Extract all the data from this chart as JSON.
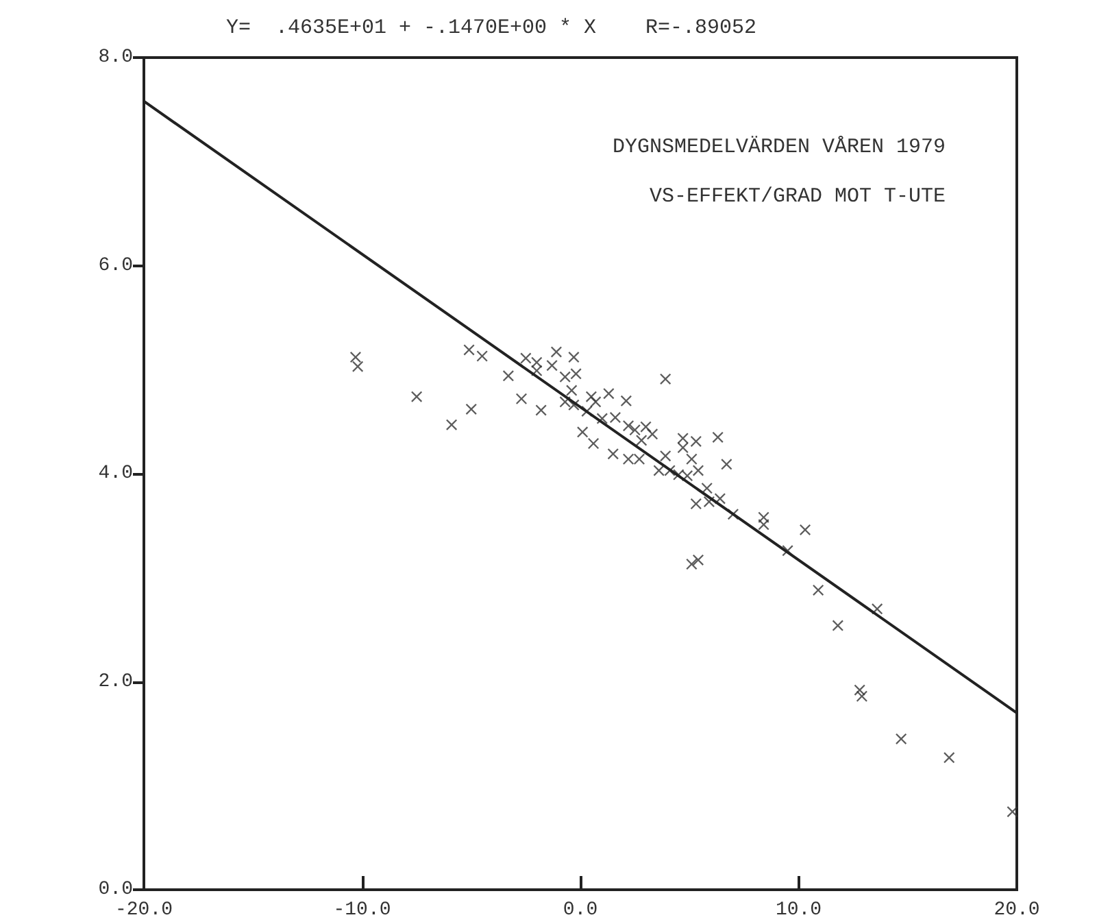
{
  "chart_data": {
    "type": "scatter",
    "title": "Y=  .4635E+01 + -.1470E+00 * X    R=-.89052",
    "annotations": [
      "DYGNSMEDELVÄRDEN VÅREN 1979",
      "VS-EFFEKT/GRAD MOT T-UTE"
    ],
    "xlim": [
      -20,
      20
    ],
    "ylim": [
      0,
      8
    ],
    "xticks": [
      {
        "value": -20,
        "label": "-20.0"
      },
      {
        "value": -10,
        "label": "-10.0"
      },
      {
        "value": 0,
        "label": "0.0"
      },
      {
        "value": 10,
        "label": "10.0"
      },
      {
        "value": 20,
        "label": "20.0"
      }
    ],
    "yticks": [
      {
        "value": 0,
        "label": "0.0"
      },
      {
        "value": 2,
        "label": "2.0"
      },
      {
        "value": 4,
        "label": "4.0"
      },
      {
        "value": 6,
        "label": "6.0"
      },
      {
        "value": 8,
        "label": "8.0"
      }
    ],
    "grid": false,
    "series": [
      {
        "color": "#333333",
        "marker": "cross",
        "x": [
          -10.3,
          -10.2,
          -7.5,
          -5.9,
          -5.0,
          -5.1,
          -4.5,
          -3.3,
          -2.7,
          -2.5,
          -2.0,
          -2.0,
          -1.8,
          -1.1,
          -1.3,
          -0.3,
          -0.2,
          -0.7,
          -0.4,
          -0.7,
          -0.3,
          0.5,
          1.3,
          0.7,
          0.3,
          1.0,
          1.6,
          2.1,
          0.1,
          0.6,
          2.2,
          2.5,
          3.0,
          3.3,
          2.8,
          1.5,
          2.2,
          2.7,
          3.9,
          4.7,
          4.7,
          5.3,
          6.3,
          5.1,
          3.9,
          3.6,
          4.1,
          4.5,
          4.9,
          5.4,
          6.7,
          5.8,
          5.3,
          5.9,
          6.4,
          7.0,
          8.4,
          8.4,
          5.1,
          5.4,
          9.5,
          10.3,
          10.9,
          11.8,
          13.6,
          12.8,
          12.9,
          14.7,
          16.9,
          19.8
        ],
        "values": [
          5.12,
          5.03,
          4.74,
          4.47,
          4.62,
          5.19,
          5.13,
          4.94,
          4.72,
          5.11,
          5.07,
          4.99,
          4.61,
          5.17,
          5.04,
          5.12,
          4.96,
          4.93,
          4.8,
          4.69,
          4.66,
          4.74,
          4.77,
          4.69,
          4.6,
          4.53,
          4.54,
          4.7,
          4.4,
          4.29,
          4.46,
          4.42,
          4.45,
          4.38,
          4.32,
          4.19,
          4.14,
          4.14,
          4.91,
          4.34,
          4.25,
          4.31,
          4.35,
          4.14,
          4.17,
          4.03,
          4.03,
          3.99,
          3.98,
          4.03,
          4.09,
          3.86,
          3.71,
          3.73,
          3.76,
          3.61,
          3.58,
          3.51,
          3.13,
          3.17,
          3.26,
          3.46,
          2.88,
          2.54,
          2.7,
          1.92,
          1.86,
          1.45,
          1.27,
          0.75
        ]
      },
      {
        "type": "line",
        "color": "#222222",
        "marker": "none",
        "line_style": "solid",
        "x": [
          -20,
          20
        ],
        "values": [
          7.58,
          1.7
        ]
      }
    ]
  }
}
